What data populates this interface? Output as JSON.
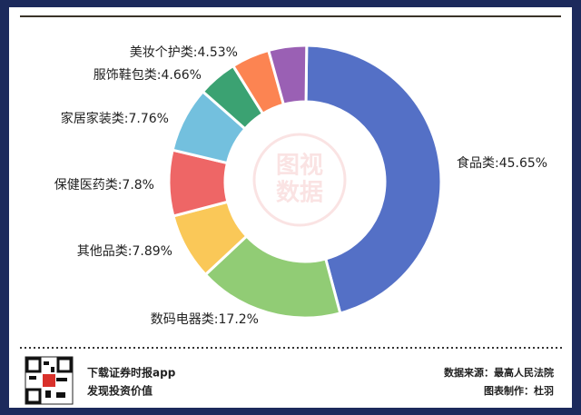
{
  "chart_data": {
    "type": "donut",
    "categories": [
      "食品类:45.65%",
      "数码电器类:17.2%",
      "其他品类:7.89%",
      "保健医药类:7.8%",
      "家居家装类:7.76%",
      "服饰鞋包类:4.66%",
      "美妆个护类:4.53%",
      null
    ],
    "values": [
      45.65,
      17.2,
      7.89,
      7.8,
      7.76,
      4.66,
      4.53,
      4.51
    ],
    "colors": [
      "#5470c6",
      "#91cc75",
      "#fac858",
      "#ee6666",
      "#73c0de",
      "#3ba272",
      "#fc8452",
      "#9a60b4"
    ],
    "watermark": [
      "图视",
      "数据"
    ]
  },
  "footer": {
    "app_line": "下载证券时报app",
    "slogan": "发现投资价值",
    "source": "数据来源：最高人民法院",
    "author": "图表制作：杜羽"
  }
}
